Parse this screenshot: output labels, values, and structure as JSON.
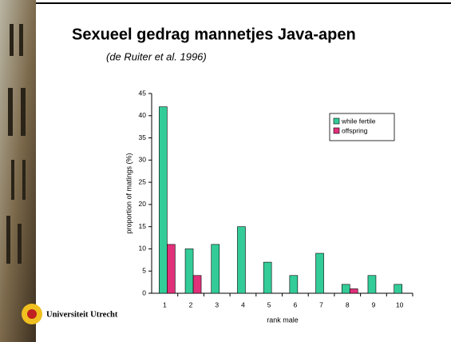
{
  "chart_data": {
    "type": "bar",
    "title": "Sexueel gedrag mannetjes Java-apen",
    "subtitle": "(de Ruiter et al. 1996)",
    "x_label": "rank male",
    "y_label": "proportion of matings (%)",
    "categories": [
      "1",
      "2",
      "3",
      "4",
      "5",
      "6",
      "7",
      "8",
      "9",
      "10"
    ],
    "series": [
      {
        "name": "while fertile",
        "color": "#33cc99",
        "values": [
          42,
          10,
          11,
          15,
          7,
          4,
          9,
          2,
          4,
          2
        ]
      },
      {
        "name": "offspring",
        "color": "#e0307a",
        "values": [
          11,
          4,
          0,
          0,
          0,
          0,
          0,
          1,
          0,
          0
        ]
      }
    ],
    "ylim": [
      0,
      45
    ],
    "yticks": [
      0,
      5,
      10,
      15,
      20,
      25,
      30,
      35,
      40,
      45
    ],
    "grid": false,
    "legend": "upper right"
  },
  "footer": {
    "logo_text": "Universiteit Utrecht"
  }
}
